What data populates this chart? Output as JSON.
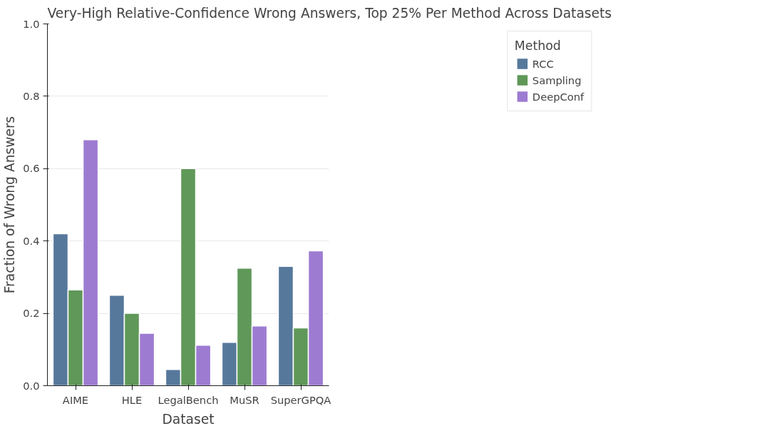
{
  "chart_data": {
    "type": "bar",
    "title": "Very-High Relative-Confidence Wrong Answers, Top 25% Per Method Across Datasets",
    "xlabel": "Dataset",
    "ylabel": "Fraction of Wrong Answers",
    "legend_title": "Method",
    "categories": [
      "AIME",
      "HLE",
      "LegalBench",
      "MuSR",
      "SuperGPQA"
    ],
    "series": [
      {
        "name": "RCC",
        "color": "#56789b",
        "values": [
          0.42,
          0.25,
          0.045,
          0.12,
          0.33
        ]
      },
      {
        "name": "Sampling",
        "color": "#5f9858",
        "values": [
          0.265,
          0.2,
          0.6,
          0.325,
          0.16
        ]
      },
      {
        "name": "DeepConf",
        "color": "#9d7bd1",
        "values": [
          0.68,
          0.145,
          0.112,
          0.165,
          0.373
        ]
      }
    ],
    "ylim": [
      0,
      1.0
    ],
    "yticks": [
      {
        "value": 0,
        "label": "0.0"
      },
      {
        "value": 0.2,
        "label": "0.2"
      },
      {
        "value": 0.4,
        "label": "0.4"
      },
      {
        "value": 0.6,
        "label": "0.6"
      },
      {
        "value": 0.8,
        "label": "0.8"
      },
      {
        "value": 1.0,
        "label": "1.0"
      }
    ],
    "grid": "y",
    "legend": "top right"
  }
}
